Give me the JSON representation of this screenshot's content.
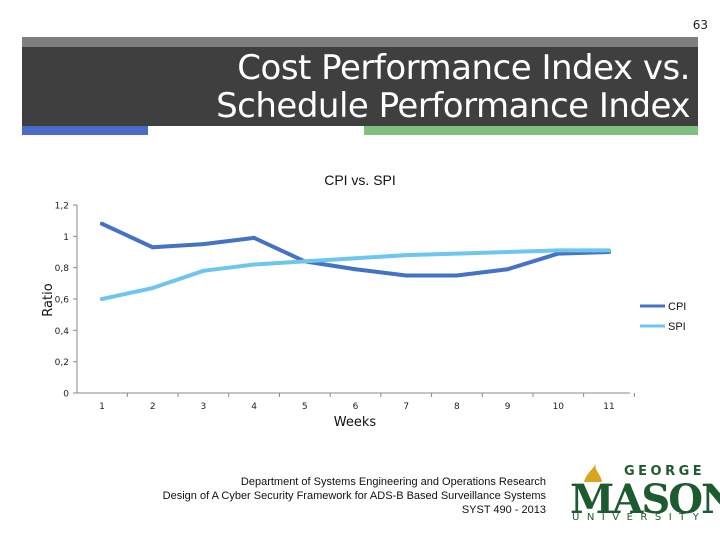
{
  "page_number": "63",
  "slide_title": "Cost Performance Index vs. Schedule Performance Index",
  "colors": {
    "title_band": "#3f3f3f",
    "accent_blue": "#4a6cc6",
    "accent_green": "#7fbf7f",
    "cpi": "#4472c4",
    "spi": "#6ec6ee",
    "logo": "#1d5a2f",
    "logo_gold": "#d9a520"
  },
  "chart_data": {
    "type": "line",
    "title": "CPI vs. SPI",
    "xlabel": "Weeks",
    "ylabel": "Ratio",
    "categories": [
      "1",
      "2",
      "3",
      "4",
      "5",
      "6",
      "7",
      "8",
      "9",
      "10",
      "11"
    ],
    "ylim": [
      0,
      1.2
    ],
    "y_ticks": [
      {
        "value": 0,
        "label": "0"
      },
      {
        "value": 0.2,
        "label": "0,2"
      },
      {
        "value": 0.4,
        "label": "0,4"
      },
      {
        "value": 0.6,
        "label": "0,6"
      },
      {
        "value": 0.8,
        "label": "0,8"
      },
      {
        "value": 1,
        "label": "1"
      },
      {
        "value": 1.2,
        "label": "1,2"
      }
    ],
    "grid": false,
    "legend_position": "right",
    "series": [
      {
        "name": "CPI",
        "color": "#4472c4",
        "values": [
          1.08,
          0.93,
          0.95,
          0.99,
          0.84,
          0.79,
          0.75,
          0.75,
          0.79,
          0.89,
          0.9
        ]
      },
      {
        "name": "SPI",
        "color": "#6ec6ee",
        "values": [
          0.6,
          0.67,
          0.78,
          0.82,
          0.84,
          0.86,
          0.88,
          0.89,
          0.9,
          0.91,
          0.91
        ]
      }
    ]
  },
  "footer": {
    "line1": "Department of Systems Engineering and Operations Research",
    "line2": "Design of A Cyber Security Framework for ADS-B Based Surveillance Systems",
    "line3": "SYST 490 - 2013"
  },
  "logo": {
    "top": "GEORGE",
    "main": "MASON",
    "bottom": "UNIVERSITY"
  }
}
